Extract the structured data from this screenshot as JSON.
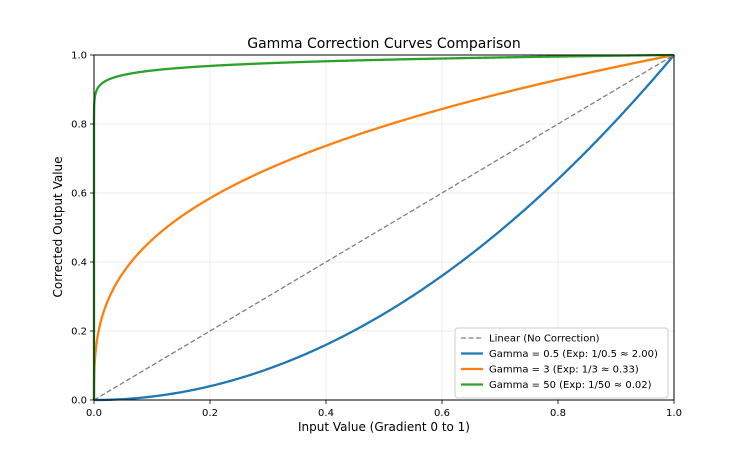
{
  "chart_data": {
    "type": "line",
    "title": "Gamma Correction Curves Comparison",
    "xlabel": "Input Value (Gradient 0 to 1)",
    "ylabel": "Corrected Output Value",
    "xlim": [
      0,
      1
    ],
    "ylim": [
      0,
      1
    ],
    "xticks": [
      "0.0",
      "0.2",
      "0.4",
      "0.6",
      "0.8",
      "1.0"
    ],
    "yticks": [
      "0.0",
      "0.2",
      "0.4",
      "0.6",
      "0.8",
      "1.0"
    ],
    "grid": true,
    "legend_position": "lower-right",
    "series": [
      {
        "name": "Linear (No Correction)",
        "exponent": 1.0,
        "color": "#7f7f7f",
        "style": "dashed"
      },
      {
        "name": "Gamma = 0.5 (Exp: 1/0.5 ≈ 2.00)",
        "exponent": 2.0,
        "color": "#1f77b4",
        "style": "solid"
      },
      {
        "name": "Gamma = 3 (Exp: 1/3 ≈ 0.33)",
        "exponent": 0.3333,
        "color": "#ff7f0e",
        "style": "solid"
      },
      {
        "name": "Gamma = 50 (Exp: 1/50 ≈ 0.02)",
        "exponent": 0.02,
        "color": "#2ca02c",
        "style": "solid"
      }
    ]
  }
}
